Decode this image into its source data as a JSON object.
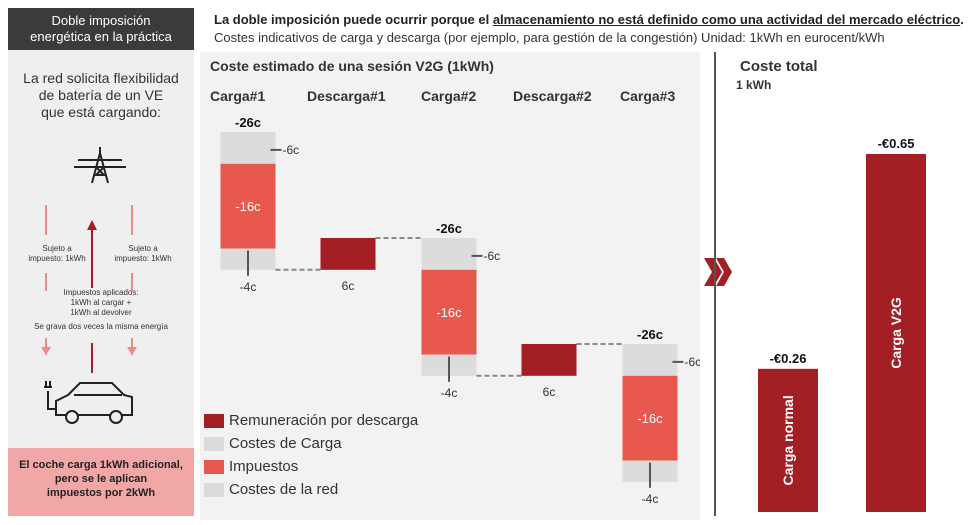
{
  "left_panel": {
    "title_line1": "Doble imposición",
    "title_line2": "energética en la práctica",
    "intro_line1": "La red solicita flexibilidad",
    "intro_line2": "de batería de un VE",
    "intro_line3": "que está cargando:",
    "tax_left_line1": "Sujeto a",
    "tax_left_line2": "impuesto: 1kWh",
    "tax_right_line1": "Sujeto a",
    "tax_right_line2": "impuesto: 1kWh",
    "applied_line1": "Impuestos aplicados:",
    "applied_line2": "1kWh al cargar +",
    "applied_line3": "1kWh al devolver",
    "double_tax": "Se grava dos veces la misma energía",
    "footer_line1": "El coche carga 1kWh adicional,",
    "footer_line2": "pero se le aplican",
    "footer_line3": "impuestos por 2kWh",
    "pylon_icon": "power-pylon-icon",
    "car_icon": "electric-car-icon"
  },
  "header": {
    "line1_prefix": "La doble imposición puede ocurrir porque el ",
    "line1_underlined": "almacenamiento no está definido como una actividad del mercado eléctrico",
    "line1_suffix": ".",
    "line2": "Costes indicativos de carga y descarga (por ejemplo, para gestión de la congestión) Unidad: 1kWh en eurocent/kWh"
  },
  "colors": {
    "remuneration": "#a31f24",
    "charge_costs": "#dcdcdc",
    "taxes": "#e8584f",
    "grid_costs": "#dcdcdc"
  },
  "chart_data": [
    {
      "type": "bar",
      "title": "Coste estimado de una sesión V2G (1kWh)",
      "unit": "eurocent/kWh",
      "categories": [
        "Carga#1",
        "Descarga#1",
        "Carga#2",
        "Descarga#2",
        "Carga#3"
      ],
      "charge_steps": [
        {
          "category": "Carga#1",
          "total_label": "-26c",
          "charge_cost": -6,
          "charge_label": "-6c",
          "tax": -16,
          "tax_label": "-16c",
          "grid_cost": -4,
          "grid_label": "-4c"
        },
        {
          "category": "Carga#2",
          "total_label": "-26c",
          "charge_cost": -6,
          "charge_label": "-6c",
          "tax": -16,
          "tax_label": "-16c",
          "grid_cost": -4,
          "grid_label": "-4c"
        },
        {
          "category": "Carga#3",
          "total_label": "-26c",
          "charge_cost": -6,
          "charge_label": "-6c",
          "tax": -16,
          "tax_label": "-16c",
          "grid_cost": -4,
          "grid_label": "-4c"
        }
      ],
      "discharge_steps": [
        {
          "category": "Descarga#1",
          "remuneration": 6,
          "label": "6c"
        },
        {
          "category": "Descarga#2",
          "remuneration": 6,
          "label": "6c"
        }
      ],
      "legend": [
        {
          "label": "Remuneración por descarga",
          "color": "#a31f24"
        },
        {
          "label": "Costes de Carga",
          "color": "#dcdcdc"
        },
        {
          "label": "Impuestos",
          "color": "#e8584f"
        },
        {
          "label": "Costes de la red",
          "color": "#dcdcdc"
        }
      ]
    },
    {
      "type": "bar",
      "title": "Coste total",
      "subtitle": "1 kWh",
      "unit": "EUR",
      "categories": [
        "Carga normal",
        "Carga V2G"
      ],
      "values": [
        -0.26,
        -0.65
      ],
      "value_labels": [
        "-€0.26",
        "-€0.65"
      ],
      "color": "#a31f24"
    }
  ]
}
